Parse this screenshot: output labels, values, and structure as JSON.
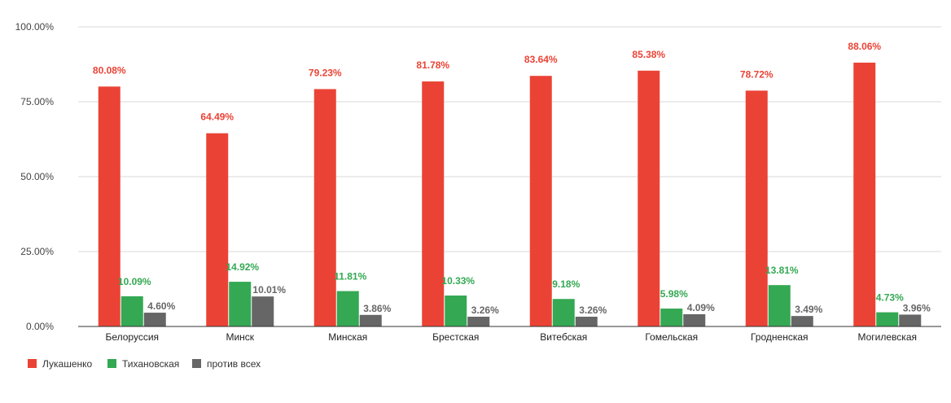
{
  "chart_data": {
    "type": "bar",
    "title": "",
    "xlabel": "",
    "ylabel": "",
    "ylim": [
      0,
      100
    ],
    "yticks": [
      "0.00%",
      "25.00%",
      "50.00%",
      "75.00%",
      "100.00%"
    ],
    "ytick_values": [
      0,
      25,
      50,
      75,
      100
    ],
    "grid": true,
    "legend_position": "bottom-left",
    "categories": [
      "Белоруссия",
      "Минск",
      "Минская",
      "Брестская",
      "Витебская",
      "Гомельская",
      "Гродненская",
      "Могилевская"
    ],
    "series": [
      {
        "name": "Лукашенко",
        "color": "#ea4335",
        "values": [
          80.08,
          64.49,
          79.23,
          81.78,
          83.64,
          85.38,
          78.72,
          88.06
        ],
        "labels": [
          "80.08%",
          "64.49%",
          "79.23%",
          "81.78%",
          "83.64%",
          "85.38%",
          "78.72%",
          "88.06%"
        ],
        "label_color": "#ea4335"
      },
      {
        "name": "Тихановская",
        "color": "#34a853",
        "values": [
          10.09,
          14.92,
          11.81,
          10.33,
          9.18,
          5.98,
          13.81,
          4.73
        ],
        "labels": [
          "10.09%",
          "14.92%",
          "11.81%",
          "10.33%",
          "9.18%",
          "5.98%",
          "13.81%",
          "4.73%"
        ],
        "label_color": "#34a853"
      },
      {
        "name": "против всех",
        "color": "#666666",
        "values": [
          4.6,
          10.01,
          3.86,
          3.26,
          3.26,
          4.09,
          3.49,
          3.96
        ],
        "labels": [
          "4.60%",
          "10.01%",
          "3.86%",
          "3.26%",
          "3.26%",
          "4.09%",
          "3.49%",
          "3.96%"
        ],
        "label_color": "#666666"
      }
    ]
  }
}
